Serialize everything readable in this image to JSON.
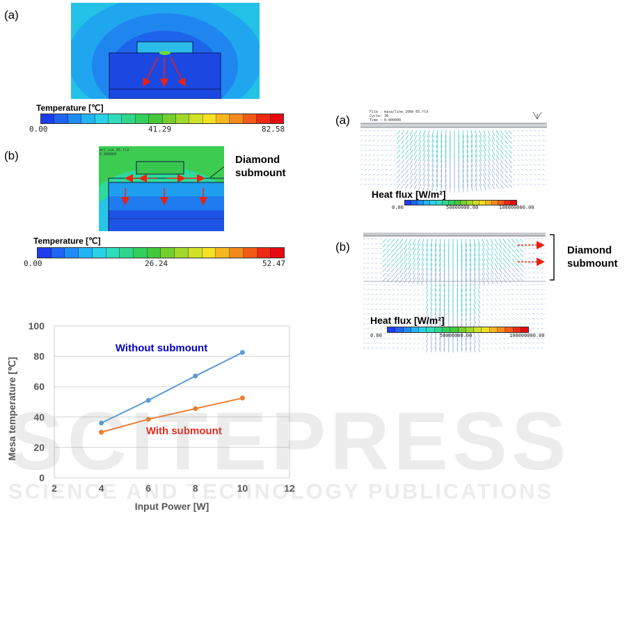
{
  "temp_panel_a": {
    "label": "(a)",
    "colorbar_title": "Temperature [℃]",
    "ticks": [
      "0.00",
      "41.29",
      "82.58"
    ]
  },
  "temp_panel_b": {
    "label": "(b)",
    "colorbar_title": "Temperature [℃]",
    "ticks": [
      "0.00",
      "26.24",
      "52.47"
    ],
    "annotation": [
      "Diamond",
      "submount"
    ],
    "sim_text": [
      "mcl_sub_05.fld",
      "0.000000"
    ]
  },
  "heat_panel_a": {
    "label": "(a)",
    "title": "Heat flux [W/m²]",
    "ticks": [
      "0.00",
      "50000000.00",
      "100000000.00"
    ],
    "sim_text": [
      "File : masa/line_100m_05.fld",
      "Cycle: 30",
      "Time : 0.000000"
    ]
  },
  "heat_panel_b": {
    "label": "(b)",
    "title": "Heat flux [W/m²]",
    "ticks": [
      "0.00",
      "50000000.00",
      "100000000.00"
    ],
    "annotation": [
      "Diamond",
      "submount"
    ]
  },
  "colorbar_colors": [
    "#1c3cf0",
    "#1f64f2",
    "#1f8cf5",
    "#22b4f4",
    "#2ad2e8",
    "#2fdcbc",
    "#2fd68c",
    "#33cf5c",
    "#45c83a",
    "#74cf2e",
    "#a3d82a",
    "#d2e028",
    "#f5e024",
    "#f6b61f",
    "#f58a1c",
    "#f25a18",
    "#ee2a14",
    "#e80a10"
  ],
  "chart_data": {
    "type": "line",
    "xlabel": "Input Power [W]",
    "ylabel": "Mesa temperature [℃]",
    "xlim": [
      2,
      12
    ],
    "ylim": [
      0,
      100
    ],
    "xticks": [
      2,
      4,
      6,
      8,
      10,
      12
    ],
    "yticks": [
      0,
      20,
      40,
      60,
      80,
      100
    ],
    "x": [
      4,
      6,
      8,
      10
    ],
    "series": [
      {
        "name": "Without  submount",
        "values": [
          36,
          51,
          67,
          82.5
        ],
        "color": "#5b9bd5",
        "label_color": "#0000cc"
      },
      {
        "name": "With submount",
        "values": [
          30,
          38.5,
          45.5,
          52.5
        ],
        "color": "#ed7d31",
        "label_color": "#e8261a"
      }
    ],
    "grid": true
  },
  "watermark": {
    "big": "SCITEPRESS",
    "small": "SCIENCE AND TECHNOLOGY PUBLICATIONS"
  }
}
